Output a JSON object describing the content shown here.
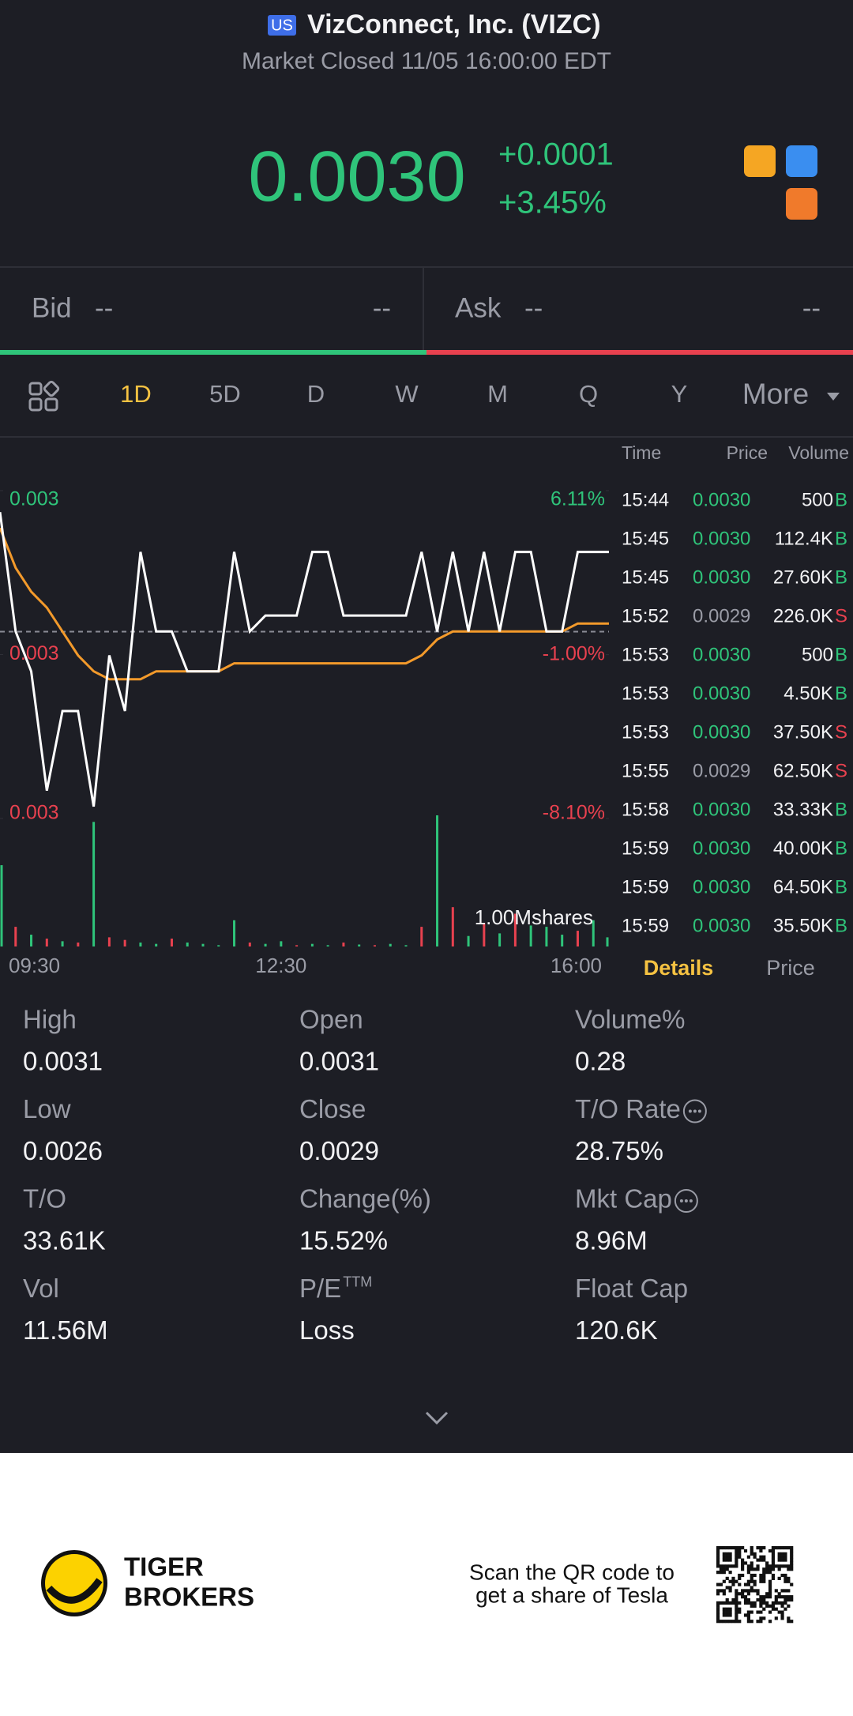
{
  "header": {
    "market_badge": "US",
    "title": "VizConnect, Inc. (VIZC)",
    "status": "Market Closed 11/05 16:00:00 EDT"
  },
  "quote": {
    "price": "0.0030",
    "change": "+0.0001",
    "change_pct": "+3.45%"
  },
  "order_book": {
    "bid_label": "Bid",
    "bid_price": "--",
    "bid_size": "--",
    "ask_label": "Ask",
    "ask_price": "--",
    "ask_size": "--"
  },
  "tabs": [
    "1D",
    "5D",
    "D",
    "W",
    "M",
    "Q",
    "Y",
    "More"
  ],
  "active_tab": 0,
  "chart_data": {
    "type": "line",
    "x": [
      "09:30",
      null,
      null,
      null,
      null,
      null,
      null,
      null,
      null,
      null,
      null,
      null,
      null,
      null,
      null,
      null,
      null,
      null,
      "12:30",
      null,
      null,
      null,
      null,
      null,
      null,
      null,
      null,
      null,
      null,
      null,
      null,
      null,
      null,
      null,
      null,
      null,
      null,
      null,
      null,
      "16:00"
    ],
    "price": {
      "color": "#ffffff",
      "values": [
        0.00305,
        0.0029,
        0.00285,
        0.0027,
        0.0028,
        0.0028,
        0.00268,
        0.00287,
        0.0028,
        0.003,
        0.0029,
        0.0029,
        0.00285,
        0.00285,
        0.00285,
        0.003,
        0.0029,
        0.00292,
        0.00292,
        0.00292,
        0.003,
        0.003,
        0.00292,
        0.00292,
        0.00292,
        0.00292,
        0.00292,
        0.003,
        0.0029,
        0.003,
        0.0029,
        0.003,
        0.0029,
        0.003,
        0.003,
        0.0029,
        0.0029,
        0.003,
        0.003,
        0.003
      ]
    },
    "average": {
      "color": "#f39a2b",
      "values": [
        0.00303,
        0.00298,
        0.00295,
        0.00293,
        0.0029,
        0.00287,
        0.00285,
        0.00284,
        0.00284,
        0.00284,
        0.00285,
        0.00285,
        0.00285,
        0.00285,
        0.00285,
        0.00286,
        0.00286,
        0.00286,
        0.00286,
        0.00286,
        0.00286,
        0.00286,
        0.00286,
        0.00286,
        0.00286,
        0.00286,
        0.00286,
        0.00287,
        0.00289,
        0.0029,
        0.0029,
        0.0029,
        0.0029,
        0.0029,
        0.0029,
        0.0029,
        0.0029,
        0.00291,
        0.00291,
        0.00291
      ]
    },
    "ylim": [
      0.002665,
      0.003077
    ],
    "yticks": [
      {
        "value": 0.003077,
        "label": "0.003"
      },
      {
        "value": 0.002871,
        "label": "0.003"
      },
      {
        "value": 0.002665,
        "label": "0.003"
      }
    ],
    "y2lim": [
      -8.1,
      6.11
    ],
    "y2ticks": [
      {
        "value": 6.11,
        "label": "6.11%"
      },
      {
        "value": -1,
        "label": "-1.00%"
      },
      {
        "value": -8.1,
        "label": "-8.10%"
      }
    ],
    "volume": {
      "ylim": [
        0,
        1000000
      ],
      "yticks": [
        {
          "value": 1000000,
          "label": "1.00Mshares"
        }
      ],
      "values": [
        620000,
        150000,
        90000,
        60000,
        40000,
        30000,
        950000,
        70000,
        50000,
        30000,
        20000,
        60000,
        30000,
        20000,
        10000,
        200000,
        30000,
        20000,
        40000,
        10000,
        20000,
        10000,
        30000,
        15000,
        10000,
        20000,
        10000,
        150000,
        1000000,
        300000,
        80000,
        180000,
        100000,
        250000,
        160000,
        150000,
        90000,
        120000,
        200000,
        70000
      ],
      "colors": [
        "#2fc47a",
        "#e8414f",
        "#2fc47a",
        "#e8414f",
        "#2fc47a",
        "#e8414f",
        "#2fc47a",
        "#e8414f",
        "#e8414f",
        "#2fc47a",
        "#2fc47a",
        "#e8414f",
        "#2fc47a",
        "#2fc47a",
        "#2fc47a",
        "#2fc47a",
        "#e8414f",
        "#2fc47a",
        "#2fc47a",
        "#e8414f",
        "#2fc47a",
        "#2fc47a",
        "#e8414f",
        "#2fc47a",
        "#e8414f",
        "#2fc47a",
        "#2fc47a",
        "#e8414f",
        "#2fc47a",
        "#e8414f",
        "#2fc47a",
        "#e8414f",
        "#2fc47a",
        "#e8414f",
        "#2fc47a",
        "#2fc47a",
        "#2fc47a",
        "#e8414f",
        "#2fc47a",
        "#2fc47a"
      ]
    }
  },
  "trades": {
    "columns": [
      "Time",
      "Price",
      "Volume"
    ],
    "rows": [
      [
        "15:44",
        "0.0030",
        "500",
        "B"
      ],
      [
        "15:45",
        "0.0030",
        "112.4K",
        "B"
      ],
      [
        "15:45",
        "0.0030",
        "27.60K",
        "B"
      ],
      [
        "15:52",
        "0.0029",
        "226.0K",
        "S"
      ],
      [
        "15:53",
        "0.0030",
        "500",
        "B"
      ],
      [
        "15:53",
        "0.0030",
        "4.50K",
        "B"
      ],
      [
        "15:53",
        "0.0030",
        "37.50K",
        "S"
      ],
      [
        "15:55",
        "0.0029",
        "62.50K",
        "S"
      ],
      [
        "15:58",
        "0.0030",
        "33.33K",
        "B"
      ],
      [
        "15:59",
        "0.0030",
        "40.00K",
        "B"
      ],
      [
        "15:59",
        "0.0030",
        "64.50K",
        "B"
      ],
      [
        "15:59",
        "0.0030",
        "35.50K",
        "B"
      ]
    ]
  },
  "trade_tabs": [
    "Details",
    "Price"
  ],
  "stats": [
    [
      {
        "label": "High",
        "value": "0.0031"
      },
      {
        "label": "Open",
        "value": "0.0031"
      },
      {
        "label": "Volume%",
        "value": "0.28"
      }
    ],
    [
      {
        "label": "Low",
        "value": "0.0026"
      },
      {
        "label": "Close",
        "value": "0.0029"
      },
      {
        "label": "T/O Rate",
        "value": "28.75%",
        "info": true
      }
    ],
    [
      {
        "label": "T/O",
        "value": "33.61K"
      },
      {
        "label": "Change(%)",
        "value": "15.52%"
      },
      {
        "label": "Mkt Cap",
        "value": "8.96M",
        "info": true
      }
    ],
    [
      {
        "label": "Vol",
        "value": "11.56M"
      },
      {
        "label": "P/E",
        "label_sup": "TTM",
        "value": "Loss"
      },
      {
        "label": "Float Cap",
        "value": "120.6K"
      }
    ]
  ],
  "footer": {
    "brand_line1": "TIGER",
    "brand_line2": "BROKERS",
    "promo_line1": "Scan the QR code to",
    "promo_line2": "get a share of Tesla"
  }
}
